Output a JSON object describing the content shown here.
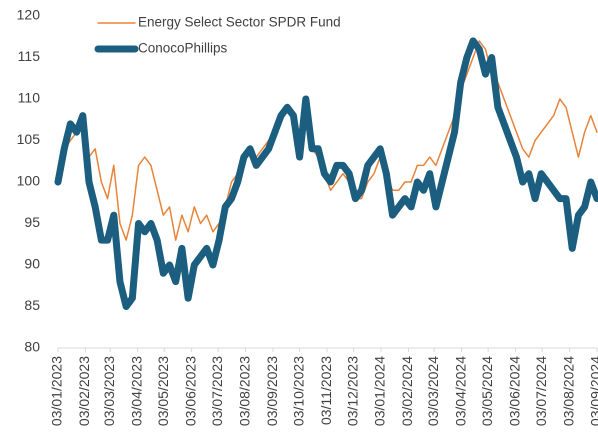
{
  "chart_data": {
    "type": "line",
    "x": [
      "03/01/2023",
      "10/01/2023",
      "17/01/2023",
      "24/01/2023",
      "31/01/2023",
      "07/02/2023",
      "14/02/2023",
      "21/02/2023",
      "28/02/2023",
      "07/03/2023",
      "14/03/2023",
      "21/03/2023",
      "28/03/2023",
      "04/04/2023",
      "11/04/2023",
      "18/04/2023",
      "25/04/2023",
      "02/05/2023",
      "09/05/2023",
      "16/05/2023",
      "23/05/2023",
      "30/05/2023",
      "06/06/2023",
      "13/06/2023",
      "20/06/2023",
      "27/06/2023",
      "04/07/2023",
      "11/07/2023",
      "18/07/2023",
      "25/07/2023",
      "01/08/2023",
      "08/08/2023",
      "15/08/2023",
      "22/08/2023",
      "29/08/2023",
      "05/09/2023",
      "12/09/2023",
      "19/09/2023",
      "26/09/2023",
      "03/10/2023",
      "10/10/2023",
      "17/10/2023",
      "24/10/2023",
      "31/10/2023",
      "07/11/2023",
      "14/11/2023",
      "21/11/2023",
      "28/11/2023",
      "05/12/2023",
      "12/12/2023",
      "19/12/2023",
      "26/12/2023",
      "02/01/2024",
      "09/01/2024",
      "16/01/2024",
      "23/01/2024",
      "30/01/2024",
      "06/02/2024",
      "13/02/2024",
      "20/02/2024",
      "27/02/2024",
      "05/03/2024",
      "12/03/2024",
      "19/03/2024",
      "26/03/2024",
      "02/04/2024",
      "09/04/2024",
      "16/04/2024",
      "23/04/2024",
      "30/04/2024",
      "07/05/2024",
      "14/05/2024",
      "21/05/2024",
      "28/05/2024",
      "04/06/2024",
      "11/06/2024",
      "18/06/2024",
      "25/06/2024",
      "02/07/2024",
      "09/07/2024",
      "16/07/2024",
      "23/07/2024",
      "30/07/2024",
      "06/08/2024",
      "13/08/2024",
      "20/08/2024",
      "27/08/2024",
      "03/09/2024"
    ],
    "series": [
      {
        "name": "Energy Select Sector SPDR Fund",
        "color": "#e8833a",
        "width": 1.5,
        "values": [
          100,
          104,
          105,
          106,
          107,
          103,
          104,
          100,
          98,
          102,
          95,
          93,
          96,
          102,
          103,
          102,
          99,
          96,
          97,
          93,
          96,
          94,
          97,
          95,
          96,
          94,
          95,
          97,
          100,
          101,
          103,
          104,
          103,
          104,
          105,
          106,
          108,
          109,
          108,
          106,
          108,
          104,
          103,
          101,
          99,
          100,
          101,
          100,
          98,
          98,
          100,
          101,
          103,
          101,
          99,
          99,
          100,
          100,
          102,
          102,
          103,
          102,
          104,
          106,
          108,
          111,
          113,
          115,
          117,
          116,
          113,
          112,
          110,
          108,
          106,
          104,
          103,
          105,
          106,
          107,
          108,
          110,
          109,
          106,
          103,
          106,
          108,
          106
        ]
      },
      {
        "name": "ConocoPhillips",
        "color": "#1b5e80",
        "width": 7,
        "values": [
          100,
          104,
          107,
          106,
          108,
          100,
          97,
          93,
          93,
          96,
          88,
          85,
          86,
          95,
          94,
          95,
          93,
          89,
          90,
          88,
          92,
          86,
          90,
          91,
          92,
          90,
          93,
          97,
          98,
          100,
          103,
          104,
          102,
          103,
          104,
          106,
          108,
          109,
          108,
          103,
          110,
          104,
          104,
          101,
          100,
          102,
          102,
          101,
          98,
          99,
          102,
          103,
          104,
          101,
          96,
          97,
          98,
          97,
          100,
          99,
          101,
          97,
          100,
          103,
          106,
          112,
          115,
          117,
          116,
          113,
          115,
          109,
          107,
          105,
          103,
          100,
          101,
          98,
          101,
          100,
          99,
          98,
          98,
          92,
          96,
          97,
          100,
          98
        ]
      }
    ],
    "xlim": [
      "03/01/2023",
      "03/09/2024"
    ],
    "xticks": [
      "03/01/2023",
      "03/02/2023",
      "03/03/2023",
      "03/04/2023",
      "03/05/2023",
      "03/06/2023",
      "03/07/2023",
      "03/08/2023",
      "03/09/2023",
      "03/10/2023",
      "03/11/2023",
      "03/12/2023",
      "03/01/2024",
      "03/02/2024",
      "03/03/2024",
      "03/04/2024",
      "03/05/2024",
      "03/06/2024",
      "03/07/2024",
      "03/08/2024",
      "03/09/2024"
    ],
    "ylim": [
      80,
      120
    ],
    "yticks": [
      80,
      85,
      90,
      95,
      100,
      105,
      110,
      115,
      120
    ],
    "legend": "upper left",
    "grid": false
  }
}
